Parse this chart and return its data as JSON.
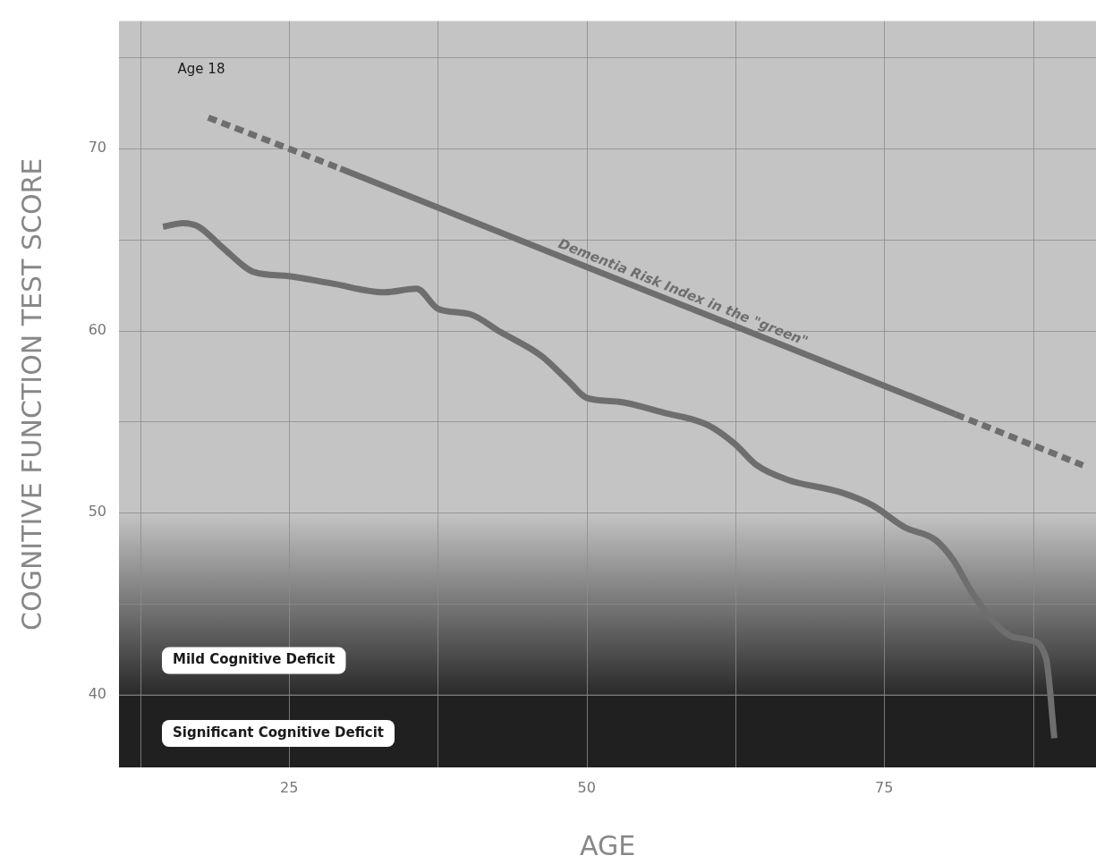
{
  "chart_data": {
    "type": "line",
    "xlabel": "AGE",
    "ylabel": "COGNITIVE FUNCTION TEST SCORE",
    "xlim": [
      10.7,
      92.8
    ],
    "xticks": [
      {
        "value": 12.5,
        "label": null
      },
      25,
      {
        "value": 37.5,
        "label": null
      },
      50,
      {
        "value": 62.5,
        "label": null
      },
      75,
      {
        "value": 87.5,
        "label": null
      }
    ],
    "ylim": [
      36,
      77
    ],
    "yticks": [
      40,
      {
        "value": 45,
        "label": null
      },
      50,
      {
        "value": 55,
        "label": null
      },
      60,
      {
        "value": 65,
        "label": null
      },
      70,
      {
        "value": 75,
        "label": null
      }
    ],
    "grid": true,
    "legend": false,
    "marker": "none",
    "series": [
      {
        "color": "#6e6e6e",
        "x": [
          14.4,
          16.1,
          17.4,
          19.5,
          22.1,
          24.8,
          28.5,
          33,
          35.7,
          37.5,
          40.2,
          42.8,
          46.2,
          48.5,
          50,
          52.6,
          56.4,
          60.2,
          62.4,
          64.3,
          66.9,
          71.4,
          74,
          76.7,
          79.3,
          80.8,
          82.3,
          84.2,
          85.7,
          87.2,
          88.6,
          89.3
        ],
        "values": [
          65.7,
          65.9,
          65.7,
          64.5,
          63.2,
          63.0,
          62.6,
          62.1,
          62.3,
          61.2,
          60.9,
          59.9,
          58.6,
          57.2,
          56.3,
          56.1,
          55.5,
          54.8,
          53.8,
          52.6,
          51.8,
          51.1,
          50.4,
          49.2,
          48.5,
          47.4,
          45.7,
          44.0,
          43.2,
          43.0,
          42.0,
          37.6
        ]
      },
      {
        "color": "#6e6e6e",
        "line_style": "dashed",
        "x": [
          18.2,
          29.3
        ],
        "values": [
          71.7,
          68.9
        ]
      },
      {
        "name": "Dementia Risk Index in the \"green\"",
        "color": "#6e6e6e",
        "line_style": "solid",
        "x": [
          29.3,
          81
        ],
        "values": [
          68.9,
          55.4
        ]
      },
      {
        "color": "#6e6e6e",
        "line_style": "dashed",
        "x": [
          81,
          91.7
        ],
        "values": [
          55.4,
          52.6
        ]
      }
    ],
    "bands": [
      {
        "axis": "y",
        "from": 40,
        "to": 50,
        "label": "Mild Cognitive Deficit",
        "color": "#2a2a2a"
      },
      {
        "axis": "y",
        "from": 36,
        "to": 40,
        "label": "Significant Cognitive Deficit",
        "color": "#202020"
      }
    ],
    "annotations": [
      "Age 18"
    ]
  }
}
